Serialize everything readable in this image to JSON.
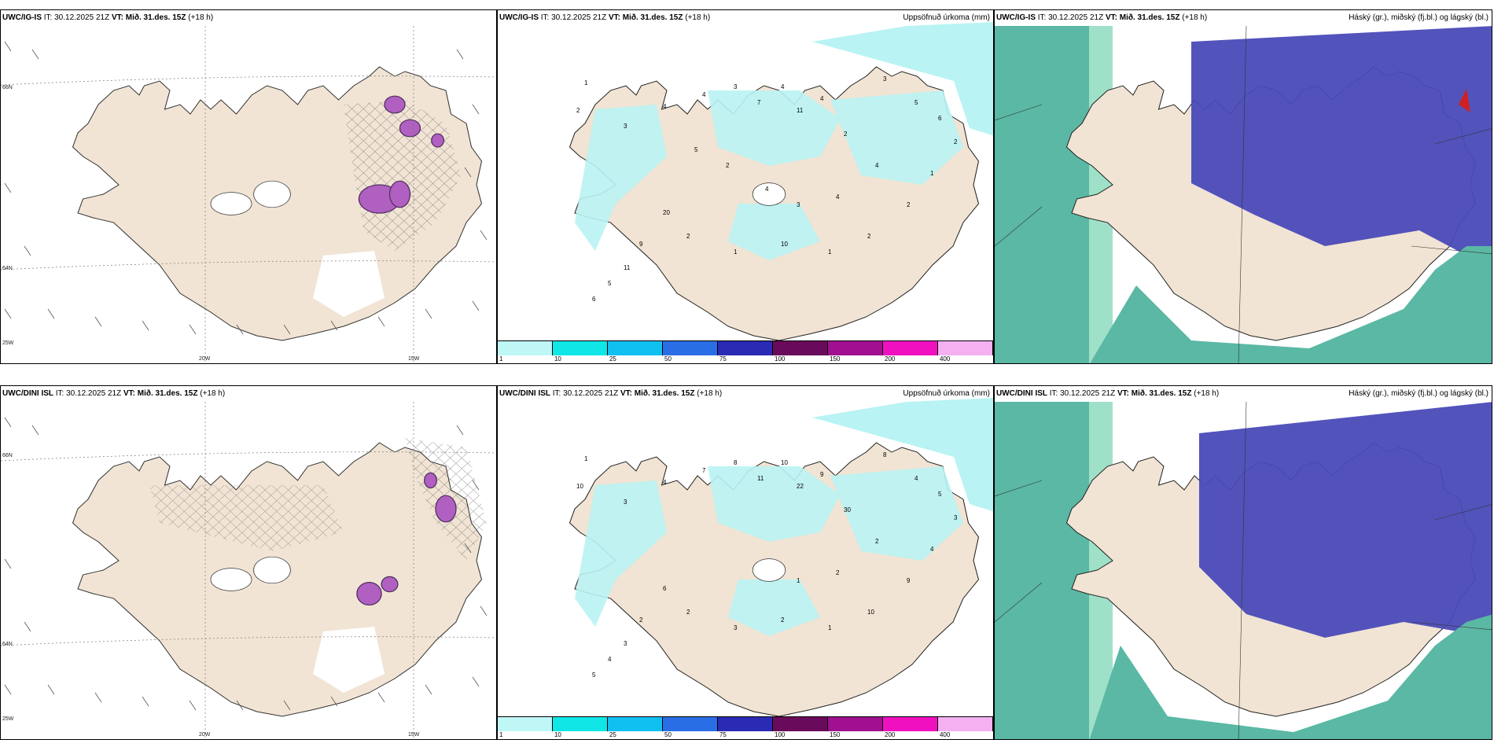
{
  "rows": [
    {
      "model": "UWC/IG-IS",
      "it": "IT: 30.12.2025 21Z",
      "vt": "VT: Mið. 31.des. 15Z",
      "lead": "(+18 h)",
      "precip_values": [
        "1",
        "2",
        "3",
        "4",
        "4",
        "3",
        "7",
        "4",
        "11",
        "4",
        "2",
        "3",
        "20",
        "9",
        "11",
        "5",
        "6",
        "2",
        "1",
        "10",
        "1",
        "2",
        "2",
        "1",
        "2",
        "6",
        "5",
        "4",
        "4",
        "3",
        "4",
        "2",
        "5"
      ]
    },
    {
      "model": "UWC/DINI ISL",
      "it": "IT: 30.12.2025 21Z",
      "vt": "VT: Mið. 31.des. 15Z",
      "lead": "(+18 h)",
      "precip_values": [
        "1",
        "10",
        "3",
        "4",
        "7",
        "8",
        "11",
        "10",
        "22",
        "9",
        "30",
        "8",
        "6",
        "2",
        "3",
        "4",
        "5",
        "2",
        "3",
        "2",
        "1",
        "10",
        "9",
        "4",
        "3",
        "5",
        "4",
        "2",
        "2",
        "1"
      ]
    }
  ],
  "titles": {
    "precip": "Uppsöfnuð úrkoma (mm)",
    "cloud": "Háský (gr.), miðský (fj.bl.) og lágský (bl.)"
  },
  "legend": {
    "ticks": [
      "1",
      "10",
      "25",
      "50",
      "75",
      "100",
      "150",
      "200",
      "400"
    ],
    "colors": [
      "#bff7f7",
      "#10e6e6",
      "#10c0f0",
      "#2a6ee6",
      "#2a2ab4",
      "#6a0a5a",
      "#a01090",
      "#f010c0",
      "#f4b0f0"
    ]
  },
  "coords": {
    "lat66": "66N",
    "lat64": "64N",
    "lon25": "25W",
    "lon20": "20W",
    "lon15": "15W"
  },
  "colors": {
    "land": "#f1e4d4",
    "precip": "#b9f3f3",
    "low_cloud": "#5ab8a4",
    "low_cloud_edge": "#10d8a0",
    "high_cloud": "#4a4ab8",
    "storm": "#b060c0"
  }
}
